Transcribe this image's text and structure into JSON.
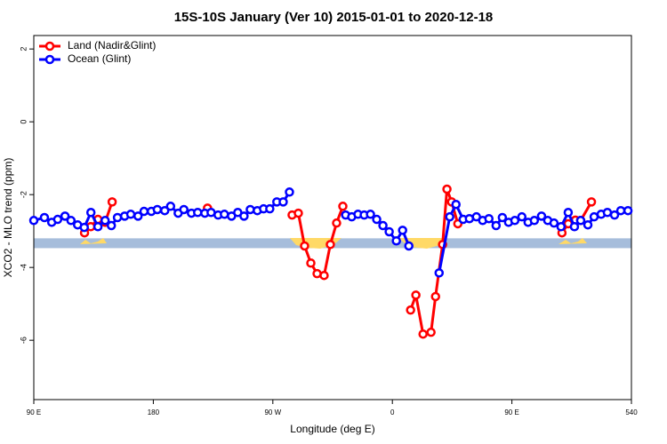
{
  "chart_data": {
    "type": "line",
    "title": "15S-10S January (Ver 10)   2015-01-01 to 2020-12-18",
    "x_label": "Longitude (deg E)",
    "y_label": "XCO2 - MLO trend (ppm)",
    "xlim": [
      90,
      540
    ],
    "xticks": [
      {
        "value": 90,
        "label": "90 E"
      },
      180,
      {
        "value": 270,
        "label": "90 W"
      },
      {
        "value": 360,
        "label": "0"
      },
      {
        "value": 450,
        "label": "90 E"
      },
      540
    ],
    "ylim": [
      -7.63,
      2.37
    ],
    "yticks": [
      -6,
      -4,
      -2,
      0,
      2
    ],
    "band": [
      -3.47,
      -3.2
    ],
    "band_color": "#a6bddb",
    "legend": "top-left",
    "series": [
      {
        "name": "Land (Nadir&Glint)",
        "color": "#ff0000",
        "x": [
          128.2,
          132.9,
          138.3,
          143.7,
          149,
          null,
          220.8,
          null,
          284.5,
          289.2,
          293.9,
          298.6,
          303.3,
          308.6,
          313.3,
          318,
          322.7,
          null,
          373.7,
          377.7,
          383.1,
          389.1,
          392.5,
          397.8,
          401.1,
          404.6,
          409.3,
          null,
          487.7,
          492.4,
          497.8,
          501.8,
          509.9
        ],
        "values": [
          -3.05,
          -2.88,
          -2.68,
          -2.76,
          -2.2,
          null,
          -2.37,
          null,
          -2.56,
          -2.51,
          -3.41,
          -3.88,
          -4.17,
          -4.22,
          -3.37,
          -2.78,
          -2.32,
          null,
          -5.17,
          -4.76,
          -5.83,
          -5.78,
          -4.8,
          -3.37,
          -1.85,
          -2.2,
          -2.8,
          null,
          -3.05,
          -2.8,
          -2.7,
          -2.71,
          -2.2
        ]
      },
      {
        "name": "Ocean (Glint)",
        "color": "#0000ff",
        "x": [
          90,
          98,
          103.5,
          108,
          113.5,
          118,
          123,
          128,
          133,
          138.3,
          143.7,
          148.4,
          153,
          158.4,
          163,
          168.5,
          173,
          178.5,
          183,
          188.6,
          193,
          198.7,
          203,
          208.7,
          213.4,
          218.8,
          223.5,
          228.8,
          233.5,
          238.9,
          243.6,
          248.3,
          253,
          258.3,
          263,
          267.7,
          273,
          277.8,
          282.5,
          null,
          324.8,
          329.4,
          334.1,
          338.8,
          343.5,
          348.2,
          352.9,
          357.6,
          363,
          367.7,
          372.4,
          null,
          395.2,
          403.2,
          407.9,
          413.3,
          418,
          423.3,
          428,
          432.7,
          438.1,
          442.8,
          447.5,
          452.2,
          457.5,
          462.2,
          466.9,
          472.3,
          477,
          481.7,
          487,
          492.4,
          497.1,
          501.8,
          507.2,
          511.9,
          517.2,
          521.9,
          527.3,
          532,
          537.4
        ],
        "values": [
          -2.71,
          -2.63,
          -2.76,
          -2.68,
          -2.59,
          -2.71,
          -2.83,
          -2.9,
          -2.49,
          -2.88,
          -2.71,
          -2.85,
          -2.63,
          -2.59,
          -2.54,
          -2.59,
          -2.46,
          -2.46,
          -2.41,
          -2.44,
          -2.32,
          -2.51,
          -2.41,
          -2.51,
          -2.49,
          -2.51,
          -2.49,
          -2.56,
          -2.54,
          -2.59,
          -2.49,
          -2.59,
          -2.41,
          -2.44,
          -2.39,
          -2.39,
          -2.2,
          -2.2,
          -1.93,
          null,
          -2.56,
          -2.61,
          -2.54,
          -2.56,
          -2.54,
          -2.68,
          -2.85,
          -3.02,
          -3.27,
          -2.98,
          -3.41,
          null,
          -4.15,
          -2.61,
          -2.27,
          -2.68,
          -2.66,
          -2.61,
          -2.71,
          -2.66,
          -2.85,
          -2.63,
          -2.76,
          -2.71,
          -2.61,
          -2.76,
          -2.71,
          -2.59,
          -2.71,
          -2.78,
          -2.88,
          -2.49,
          -2.88,
          -2.71,
          -2.83,
          -2.61,
          -2.54,
          -2.49,
          -2.56,
          -2.44,
          -2.44
        ]
      }
    ]
  }
}
